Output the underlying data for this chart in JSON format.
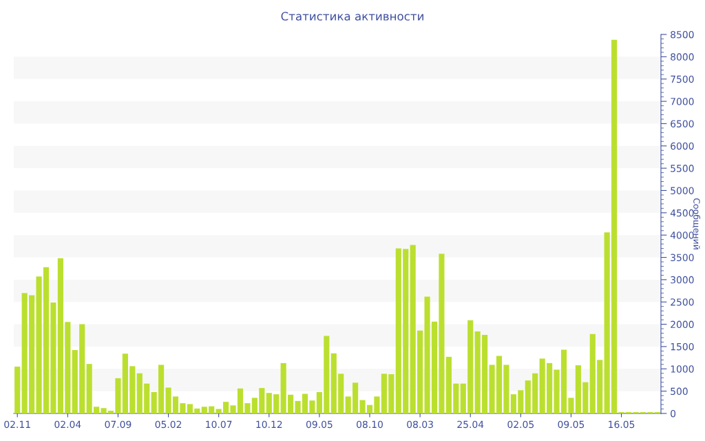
{
  "chart_data": {
    "type": "bar",
    "title": "Статистика активности",
    "ylabel": "Сообщений",
    "categories": [
      "02.11",
      null,
      null,
      null,
      null,
      null,
      null,
      "02.04",
      null,
      null,
      null,
      null,
      null,
      null,
      "07.09",
      null,
      null,
      null,
      null,
      null,
      null,
      "05.02",
      null,
      null,
      null,
      null,
      null,
      null,
      "10.07",
      null,
      null,
      null,
      null,
      null,
      null,
      "10.12",
      null,
      null,
      null,
      null,
      null,
      null,
      "09.05",
      null,
      null,
      null,
      null,
      null,
      null,
      "08.10",
      null,
      null,
      null,
      null,
      null,
      null,
      "08.03",
      null,
      null,
      null,
      null,
      null,
      null,
      "25.04",
      null,
      null,
      null,
      null,
      null,
      null,
      "02.05",
      null,
      null,
      null,
      null,
      null,
      null,
      "09.05",
      null,
      null,
      null,
      null,
      null,
      null,
      "16.05",
      null,
      null,
      null,
      null,
      null
    ],
    "values": [
      1050,
      2700,
      2650,
      3070,
      3280,
      2490,
      3480,
      2050,
      1420,
      2000,
      1110,
      150,
      120,
      60,
      790,
      1340,
      1060,
      900,
      670,
      480,
      1090,
      580,
      380,
      230,
      210,
      110,
      150,
      160,
      100,
      260,
      180,
      560,
      230,
      350,
      570,
      460,
      430,
      1130,
      420,
      280,
      440,
      290,
      480,
      1740,
      1350,
      890,
      380,
      690,
      300,
      190,
      380,
      890,
      880,
      3700,
      3690,
      3780,
      1860,
      2620,
      2060,
      3580,
      1270,
      670,
      670,
      2090,
      1840,
      1760,
      1090,
      1290,
      1090,
      430,
      520,
      740,
      900,
      1230,
      1130,
      980,
      1430,
      350,
      1080,
      700,
      1780,
      1200,
      4060,
      8380,
      30,
      30,
      30,
      30,
      30,
      30
    ],
    "color": "#bbdf2f",
    "ylim": [
      0,
      8500
    ],
    "yticks": [
      0,
      500,
      1000,
      1500,
      2000,
      2500,
      3000,
      3500,
      4000,
      4500,
      5000,
      5500,
      6000,
      6500,
      7000,
      7500,
      8000,
      8500
    ],
    "bands": [
      {
        "axis": "y",
        "from": 500,
        "to": 1000,
        "color": "#f7f7f7"
      },
      {
        "axis": "y",
        "from": 1500,
        "to": 2000,
        "color": "#f7f7f7"
      },
      {
        "axis": "y",
        "from": 2500,
        "to": 3000,
        "color": "#f7f7f7"
      },
      {
        "axis": "y",
        "from": 3500,
        "to": 4000,
        "color": "#f7f7f7"
      },
      {
        "axis": "y",
        "from": 4500,
        "to": 5000,
        "color": "#f7f7f7"
      },
      {
        "axis": "y",
        "from": 5500,
        "to": 6000,
        "color": "#f7f7f7"
      },
      {
        "axis": "y",
        "from": 6500,
        "to": 7000,
        "color": "#f7f7f7"
      },
      {
        "axis": "y",
        "from": 7500,
        "to": 8000,
        "color": "#f7f7f7"
      }
    ],
    "grid": false,
    "legend": false
  }
}
